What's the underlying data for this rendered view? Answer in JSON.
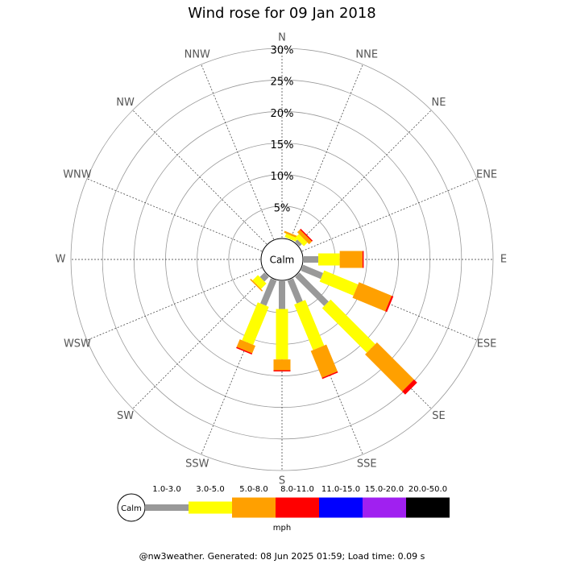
{
  "chart_data": {
    "type": "windrose",
    "title": "Wind rose for 09 Jan 2018",
    "categories": [
      "N",
      "NNE",
      "NE",
      "ENE",
      "E",
      "ESE",
      "SE",
      "SSE",
      "S",
      "SSW",
      "SW",
      "WSW",
      "W",
      "WNW",
      "NW",
      "NNW"
    ],
    "series": [
      {
        "name": "1.0-3.0",
        "color": "#999999",
        "values": [
          0,
          0,
          0.5,
          0,
          2.3,
          3.4,
          6.5,
          3.9,
          4.4,
          4.3,
          1.0,
          0,
          0,
          0,
          0,
          0
        ]
      },
      {
        "name": "3.0-5.0",
        "color": "#ffff00",
        "values": [
          0,
          0.6,
          0.8,
          0,
          3.4,
          5.8,
          10,
          7.8,
          8,
          6.5,
          1.2,
          0,
          0,
          0,
          0,
          0
        ]
      },
      {
        "name": "5.0-8.0",
        "color": "#ffa000",
        "values": [
          0,
          0.3,
          0.6,
          0,
          3.6,
          5.6,
          8.3,
          4.6,
          1.7,
          1.3,
          0.2,
          0,
          0,
          0,
          0,
          0
        ]
      },
      {
        "name": "8.0-11.0",
        "color": "#ff0000",
        "values": [
          0,
          0,
          0.2,
          0,
          0.2,
          0.3,
          0.7,
          0.2,
          0.2,
          0.2,
          0,
          0,
          0,
          0,
          0,
          0
        ]
      },
      {
        "name": "11.0-15.0",
        "color": "#0000ff",
        "values": [
          0,
          0,
          0,
          0,
          0,
          0,
          0,
          0,
          0,
          0,
          0,
          0,
          0,
          0,
          0,
          0
        ]
      },
      {
        "name": "15.0-20.0",
        "color": "#a020f0",
        "values": [
          0,
          0,
          0,
          0,
          0,
          0,
          0,
          0,
          0,
          0,
          0,
          0,
          0,
          0,
          0,
          0
        ]
      },
      {
        "name": "20.0-50.0",
        "color": "#000000",
        "values": [
          0,
          0,
          0,
          0,
          0,
          0,
          0,
          0,
          0,
          0,
          0,
          0,
          0,
          0,
          0,
          0
        ]
      }
    ],
    "rlim": [
      0,
      30
    ],
    "rticks": [
      {
        "value": 5,
        "label": "5%"
      },
      {
        "value": 10,
        "label": "10%"
      },
      {
        "value": 15,
        "label": "15%"
      },
      {
        "value": 20,
        "label": "20%"
      },
      {
        "value": 25,
        "label": "25%"
      },
      {
        "value": 30,
        "label": "30%"
      }
    ],
    "calm_label": "Calm",
    "legend_unit": "mph"
  },
  "footer": "@nw3weather. Generated: 08 Jun 2025 01:59; Load time: 0.09 s"
}
